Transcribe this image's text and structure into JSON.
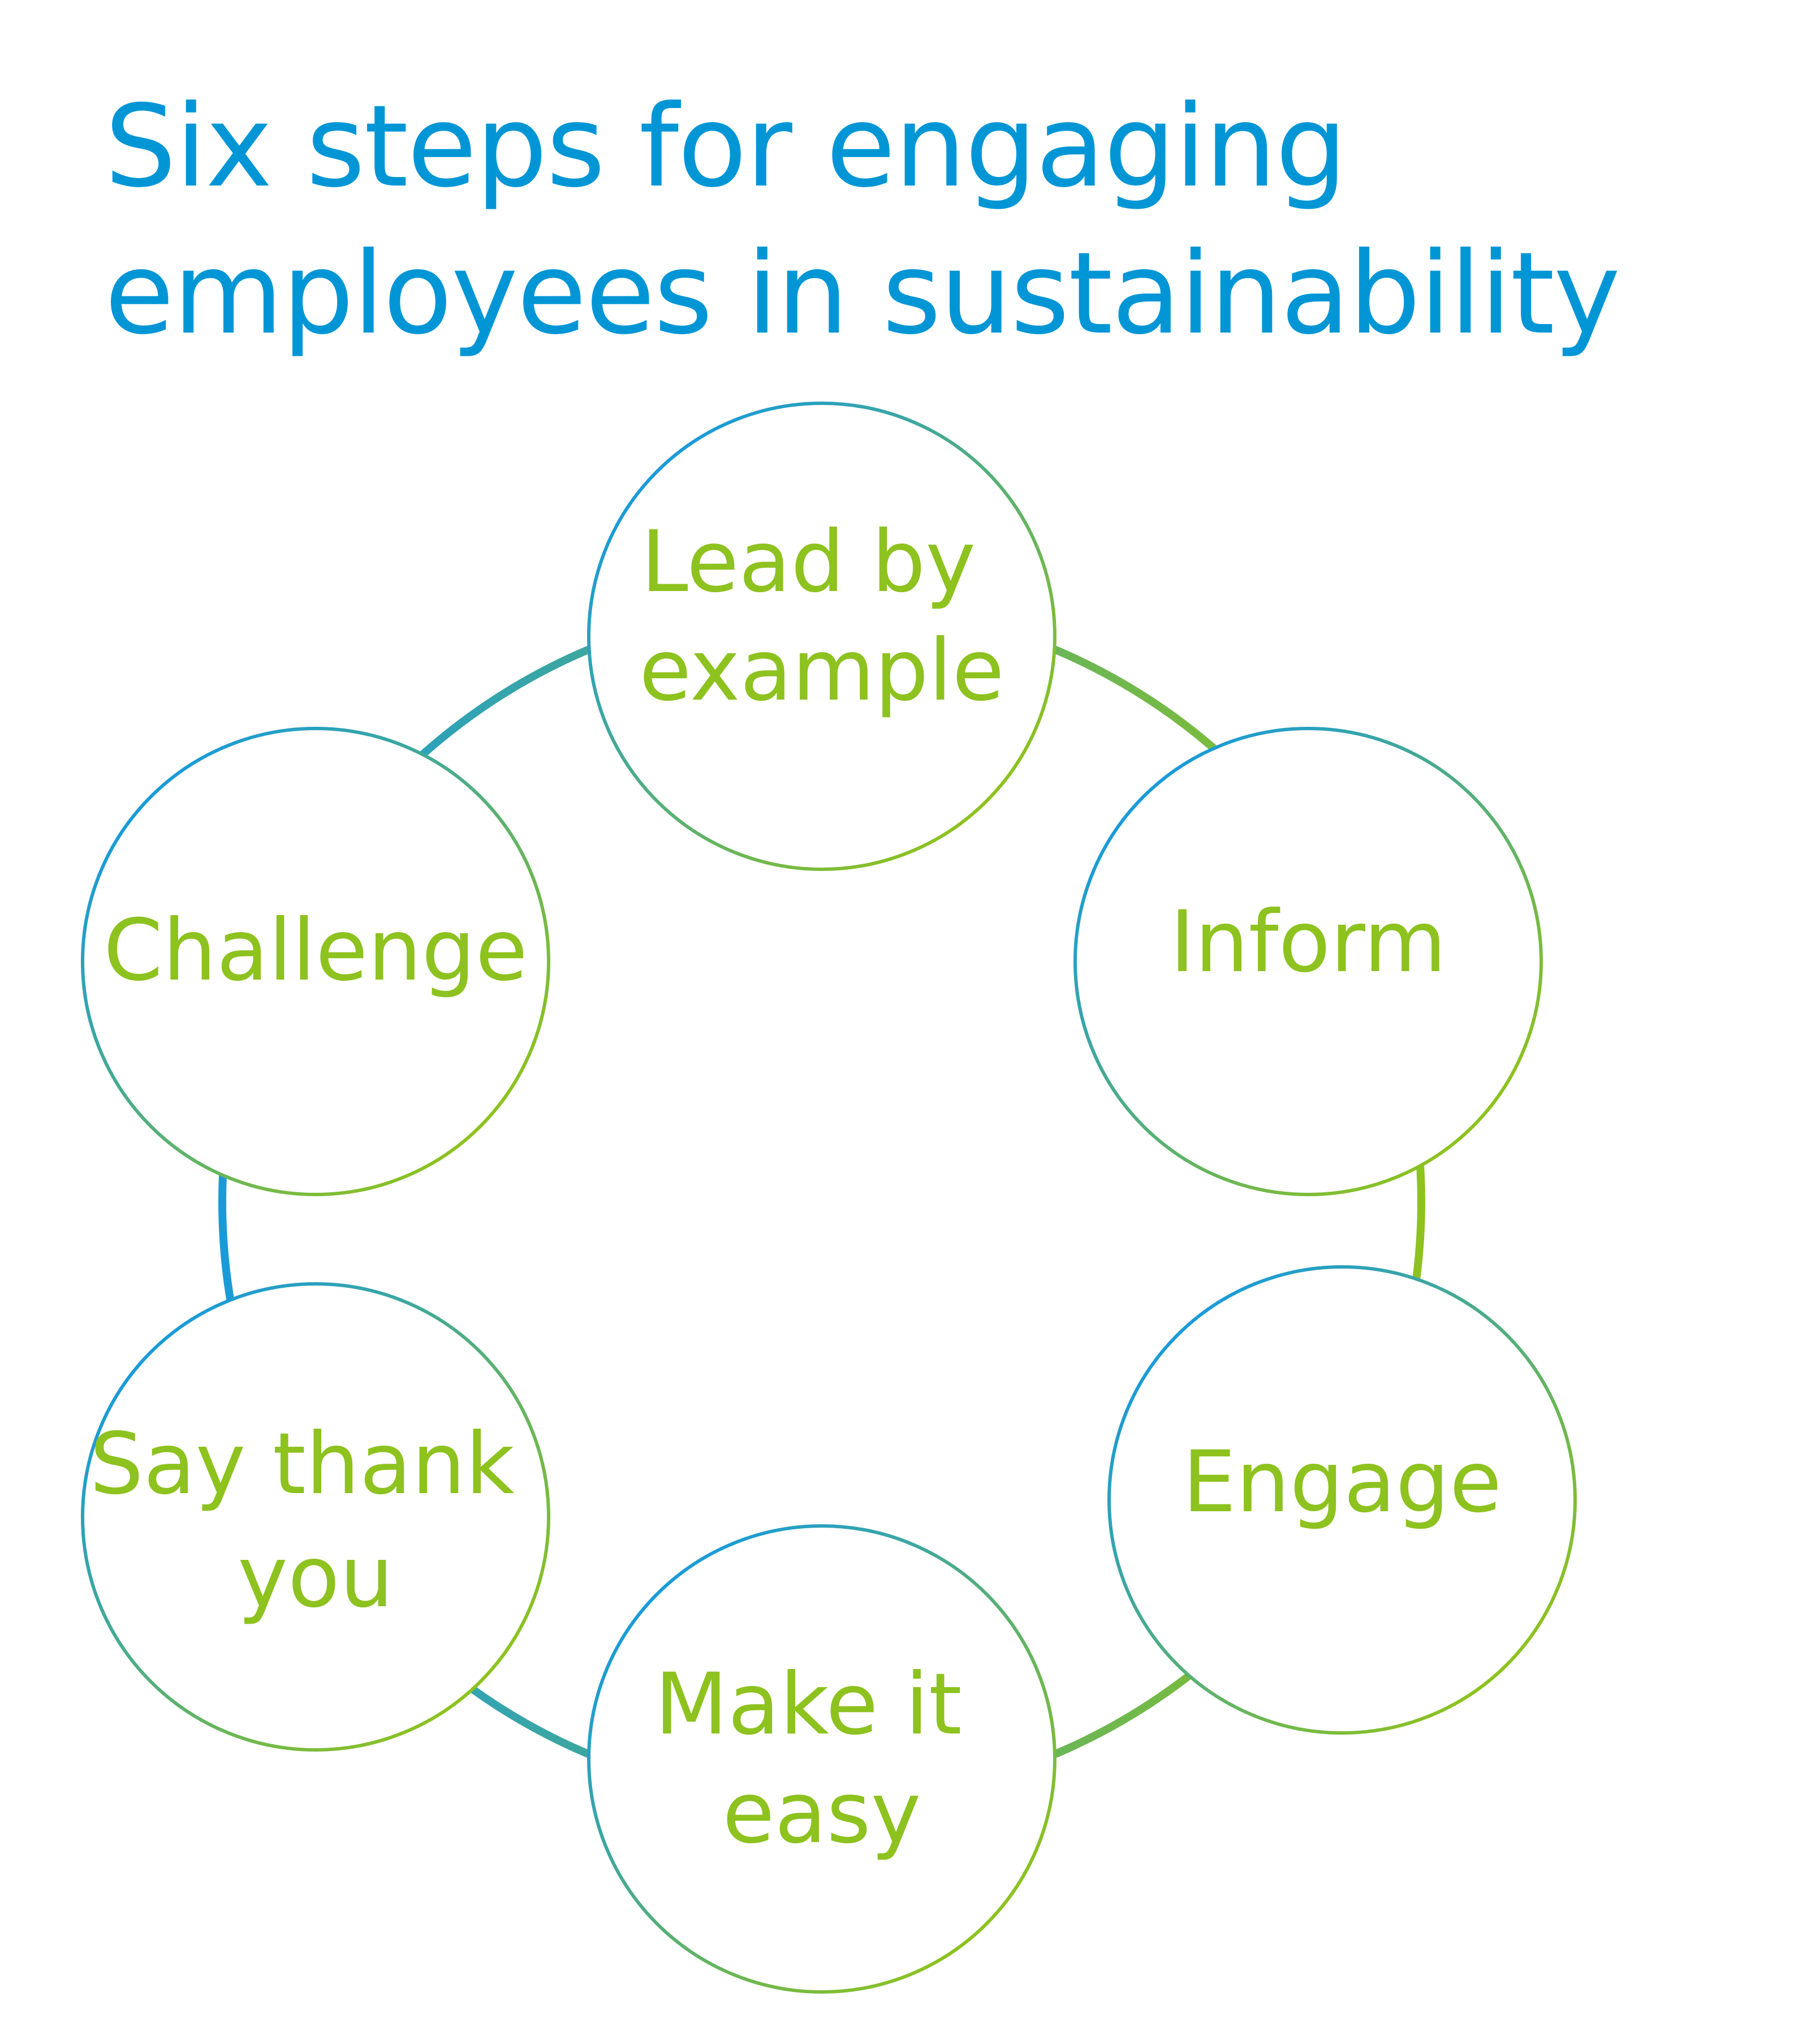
{
  "title": {
    "line1": "Six steps for engaging",
    "line2": "employees in sustainability"
  },
  "colors": {
    "title": "#0096D6",
    "label": "#8DC21F",
    "ring_blue": "#1A9BD7",
    "ring_green": "#8DC21F"
  },
  "steps": [
    {
      "lines": [
        "Lead by",
        "example"
      ]
    },
    {
      "lines": [
        "Inform"
      ]
    },
    {
      "lines": [
        "Engage"
      ]
    },
    {
      "lines": [
        "Make it",
        "easy"
      ]
    },
    {
      "lines": [
        "Say thank",
        "you"
      ]
    },
    {
      "lines": [
        "Challenge"
      ]
    }
  ]
}
